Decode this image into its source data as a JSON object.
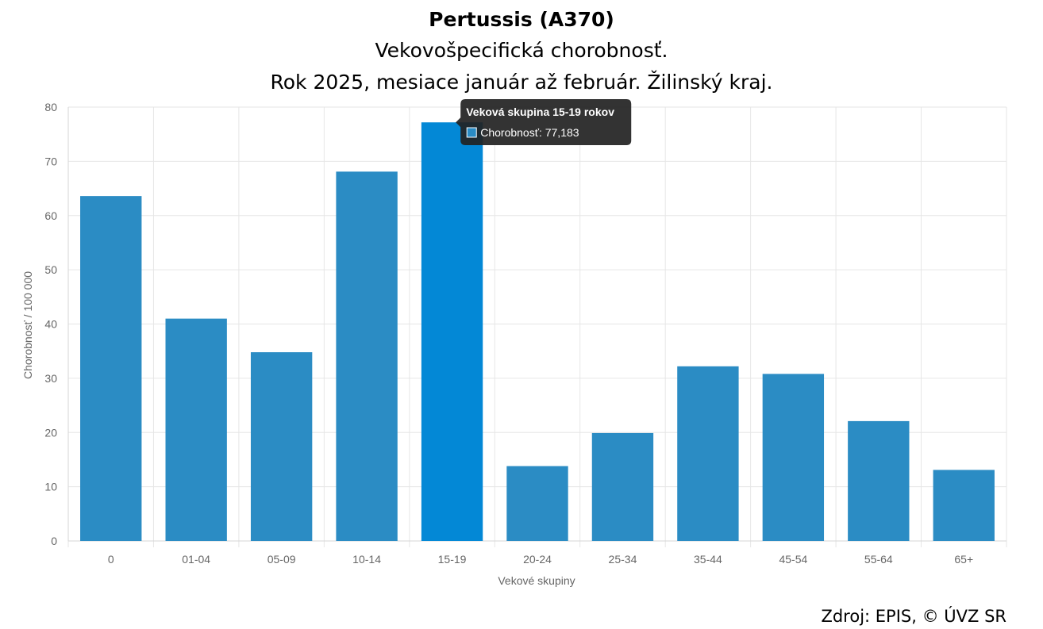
{
  "titles": {
    "title": "Pertussis (A370)",
    "subtitle1": "Vekovošpecifická chorobnosť.",
    "subtitle2": "Rok 2025, mesiace január až február. Žilinský kraj."
  },
  "source": "Zdroj: EPIS, © ÚVZ SR",
  "colors": {
    "bar": "#2b8cc4",
    "bar_highlight": "#0388d6",
    "grid": "#e6e6e6",
    "axis_text": "#666666",
    "tooltip_bg": "#222222",
    "tooltip_text": "#ffffff"
  },
  "tooltip": {
    "title": "Veková skupina 15-19 rokov",
    "body": "Chorobnosť: 77,183",
    "category_index": 4
  },
  "chart_data": {
    "type": "bar",
    "title": "Pertussis (A370)",
    "xlabel": "Vekové skupiny",
    "ylabel": "Chorobnosť / 100 000",
    "ylim": [
      0,
      80
    ],
    "yticks": [
      0,
      10,
      20,
      30,
      40,
      50,
      60,
      70,
      80
    ],
    "grid": true,
    "categories": [
      "0",
      "01-04",
      "05-09",
      "10-14",
      "15-19",
      "20-24",
      "25-34",
      "35-44",
      "45-54",
      "55-64",
      "65+"
    ],
    "series": [
      {
        "name": "Chorobnosť",
        "values": [
          63.6,
          41.0,
          34.8,
          68.1,
          77.183,
          13.8,
          19.9,
          32.2,
          30.8,
          22.1,
          13.1
        ]
      }
    ]
  }
}
